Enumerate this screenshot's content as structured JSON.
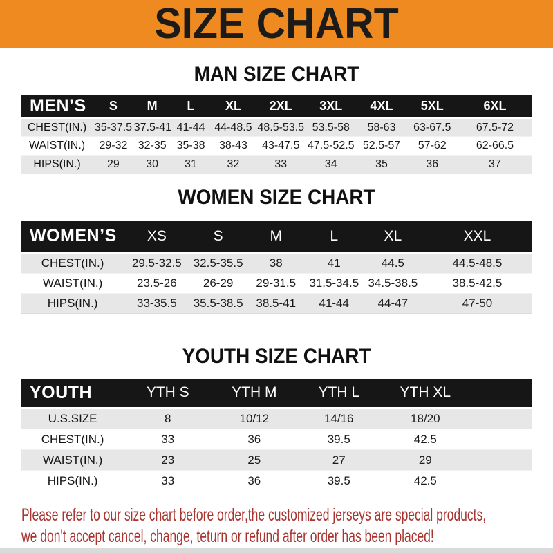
{
  "theme": {
    "banner_bg": "#EE8A1F",
    "banner_text": "#1C1B19",
    "header_bar_bg": "#161616",
    "header_bar_text": "#FFFFFF",
    "row_alt_bg": "#E7E7E7",
    "footer_text_color": "#A93430"
  },
  "banner": {
    "title": "SIZE CHART"
  },
  "sections": [
    {
      "title": "MAN SIZE CHART",
      "table": {
        "name": "mens",
        "corner_label": "MEN’S",
        "columns": [
          "S",
          "M",
          "L",
          "XL",
          "2XL",
          "3XL",
          "4XL",
          "5XL",
          "6XL"
        ],
        "rows": [
          {
            "label": "CHEST(IN.)",
            "values": [
              "35-37.5",
              "37.5-41",
              "41-44",
              "44-48.5",
              "48.5-53.5",
              "53.5-58",
              "58-63",
              "63-67.5",
              "67.5-72"
            ]
          },
          {
            "label": "WAIST(IN.)",
            "values": [
              "29-32",
              "32-35",
              "35-38",
              "38-43",
              "43-47.5",
              "47.5-52.5",
              "52.5-57",
              "57-62",
              "62-66.5"
            ]
          },
          {
            "label": "HIPS(IN.)",
            "values": [
              "29",
              "30",
              "31",
              "32",
              "33",
              "34",
              "35",
              "36",
              "37"
            ]
          }
        ]
      }
    },
    {
      "title": "WOMEN SIZE CHART",
      "table": {
        "name": "womens",
        "corner_label": "WOMEN’S",
        "columns": [
          "XS",
          "S",
          "M",
          "L",
          "XL",
          "XXL"
        ],
        "rows": [
          {
            "label": "CHEST(IN.)",
            "values": [
              "29.5-32.5",
              "32.5-35.5",
              "38",
              "41",
              "44.5",
              "44.5-48.5"
            ]
          },
          {
            "label": "WAIST(IN.)",
            "values": [
              "23.5-26",
              "26-29",
              "29-31.5",
              "31.5-34.5",
              "34.5-38.5",
              "38.5-42.5"
            ]
          },
          {
            "label": "HIPS(IN.)",
            "values": [
              "33-35.5",
              "35.5-38.5",
              "38.5-41",
              "41-44",
              "44-47",
              "47-50"
            ]
          }
        ]
      }
    },
    {
      "title": "YOUTH SIZE CHART",
      "table": {
        "name": "youth",
        "corner_label": "YOUTH",
        "columns": [
          "YTH S",
          "YTH M",
          "YTH L",
          "YTH XL"
        ],
        "rows": [
          {
            "label": "U.S.SIZE",
            "values": [
              "8",
              "10/12",
              "14/16",
              "18/20"
            ]
          },
          {
            "label": "CHEST(IN.)",
            "values": [
              "33",
              "36",
              "39.5",
              "42.5"
            ]
          },
          {
            "label": "WAIST(IN.)",
            "values": [
              "23",
              "25",
              "27",
              "29"
            ]
          },
          {
            "label": "HIPS(IN.)",
            "values": [
              "33",
              "36",
              "39.5",
              "42.5"
            ]
          }
        ]
      }
    }
  ],
  "footer": {
    "line1": "Please refer to our size chart before order,the customized jerseys are special products,",
    "line2": "we don't accept cancel, change, teturn or refund after order has been placed!"
  }
}
